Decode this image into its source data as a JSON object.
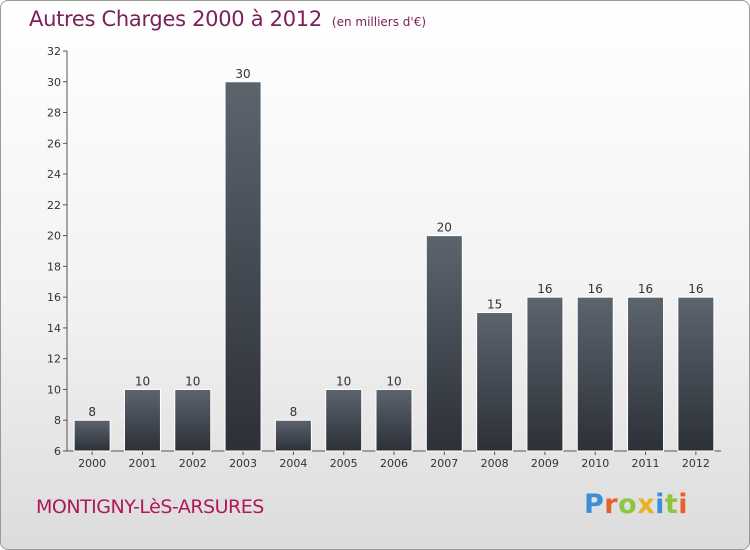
{
  "header": {
    "title": "Autres Charges 2000 à 2012",
    "unit": "(en milliers d'€)"
  },
  "footer": {
    "commune": "MONTIGNY-LèS-ARSURES",
    "logo_text": "Proxiti"
  },
  "colors": {
    "title": "#7a1f5a",
    "commune": "#b0185a",
    "bar_top": "#5c646e",
    "bar_bottom": "#2c3038",
    "logo_letters": [
      "#3a8fd6",
      "#e8612a",
      "#8cc63f",
      "#e8b320",
      "#3a8fd6",
      "#8cc63f",
      "#e8612a"
    ]
  },
  "chart_data": {
    "type": "bar",
    "categories": [
      "2000",
      "2001",
      "2002",
      "2003",
      "2004",
      "2005",
      "2006",
      "2007",
      "2008",
      "2009",
      "2010",
      "2011",
      "2012"
    ],
    "values": [
      8,
      10,
      10,
      30,
      8,
      10,
      10,
      20,
      15,
      16,
      16,
      16,
      16
    ],
    "ylim": [
      6,
      32
    ],
    "yticks": [
      6,
      8,
      10,
      12,
      14,
      16,
      18,
      20,
      22,
      24,
      26,
      28,
      30,
      32
    ],
    "grid": false,
    "data_labels": true
  }
}
